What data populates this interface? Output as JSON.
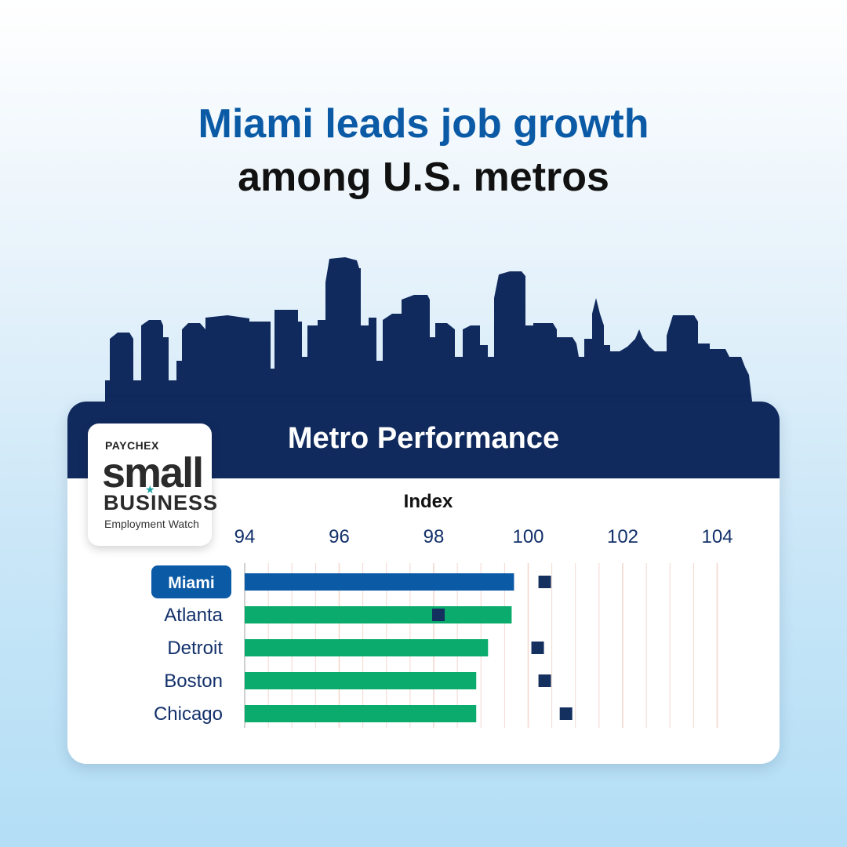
{
  "headline": {
    "line1": "Miami leads job growth",
    "line2": "among U.S. metros"
  },
  "card": {
    "title": "Metro Performance"
  },
  "logo": {
    "brand": "PAYCHEX",
    "word1": "small",
    "word2": "BUSINESS",
    "word3": "Employment Watch"
  },
  "colors": {
    "navy": "#112a5e",
    "highlight_bar": "#0b5aa6",
    "other_bars": "#0aab6c",
    "markers": "#13305f",
    "axis_text": "#12306a",
    "gridline": "#f2d8cf"
  },
  "chart_data": {
    "type": "bar",
    "orientation": "horizontal",
    "xlabel": "Index",
    "xlim": [
      94,
      104.2
    ],
    "xticks": [
      94,
      96,
      98,
      100,
      102,
      104
    ],
    "grid": true,
    "highlight": "Miami",
    "categories": [
      "Miami",
      "Atlanta",
      "Detroit",
      "Boston",
      "Chicago"
    ],
    "bar_values": [
      99.7,
      99.65,
      99.15,
      98.9,
      98.9
    ],
    "marker_values": [
      100.35,
      98.1,
      100.2,
      100.35,
      100.8
    ]
  }
}
